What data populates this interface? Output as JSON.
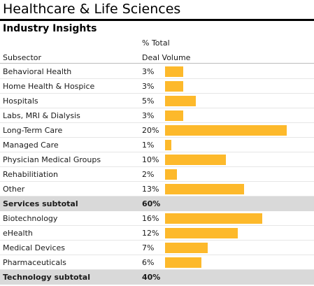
{
  "header": {
    "title": "Healthcare & Life Sciences",
    "subtitle": "Industry Insights"
  },
  "columns": {
    "subsector": "Subsector",
    "metric_line1": "% Total",
    "metric_line2": "Deal Volume"
  },
  "colors": {
    "bar": "#fdb92b",
    "subtotal_band": "#d9d9d9"
  },
  "chart_data": {
    "type": "bar",
    "orientation": "horizontal",
    "title": "Healthcare & Life Sciences",
    "subtitle": "Industry Insights",
    "xlabel": "% Total Deal Volume",
    "ylabel": "Subsector",
    "rows": [
      {
        "label": "Behavioral Health",
        "value": 3,
        "text": "3%",
        "kind": "item"
      },
      {
        "label": "Home Health & Hospice",
        "value": 3,
        "text": "3%",
        "kind": "item"
      },
      {
        "label": "Hospitals",
        "value": 5,
        "text": "5%",
        "kind": "item"
      },
      {
        "label": "Labs, MRI & Dialysis",
        "value": 3,
        "text": "3%",
        "kind": "item"
      },
      {
        "label": "Long-Term Care",
        "value": 20,
        "text": "20%",
        "kind": "item"
      },
      {
        "label": "Managed Care",
        "value": 1,
        "text": "1%",
        "kind": "item"
      },
      {
        "label": "Physician Medical Groups",
        "value": 10,
        "text": "10%",
        "kind": "item"
      },
      {
        "label": "Rehabilitiation",
        "value": 2,
        "text": "2%",
        "kind": "item"
      },
      {
        "label": "Other",
        "value": 13,
        "text": "13%",
        "kind": "item"
      },
      {
        "label": "Services subtotal",
        "value": 60,
        "text": "60%",
        "kind": "subtotal"
      },
      {
        "label": "Biotechnology",
        "value": 16,
        "text": "16%",
        "kind": "item"
      },
      {
        "label": "eHealth",
        "value": 12,
        "text": "12%",
        "kind": "item"
      },
      {
        "label": "Medical Devices",
        "value": 7,
        "text": "7%",
        "kind": "item"
      },
      {
        "label": "Pharmaceuticals",
        "value": 6,
        "text": "6%",
        "kind": "item"
      },
      {
        "label": "Technology subtotal",
        "value": 40,
        "text": "40%",
        "kind": "subtotal"
      }
    ]
  }
}
